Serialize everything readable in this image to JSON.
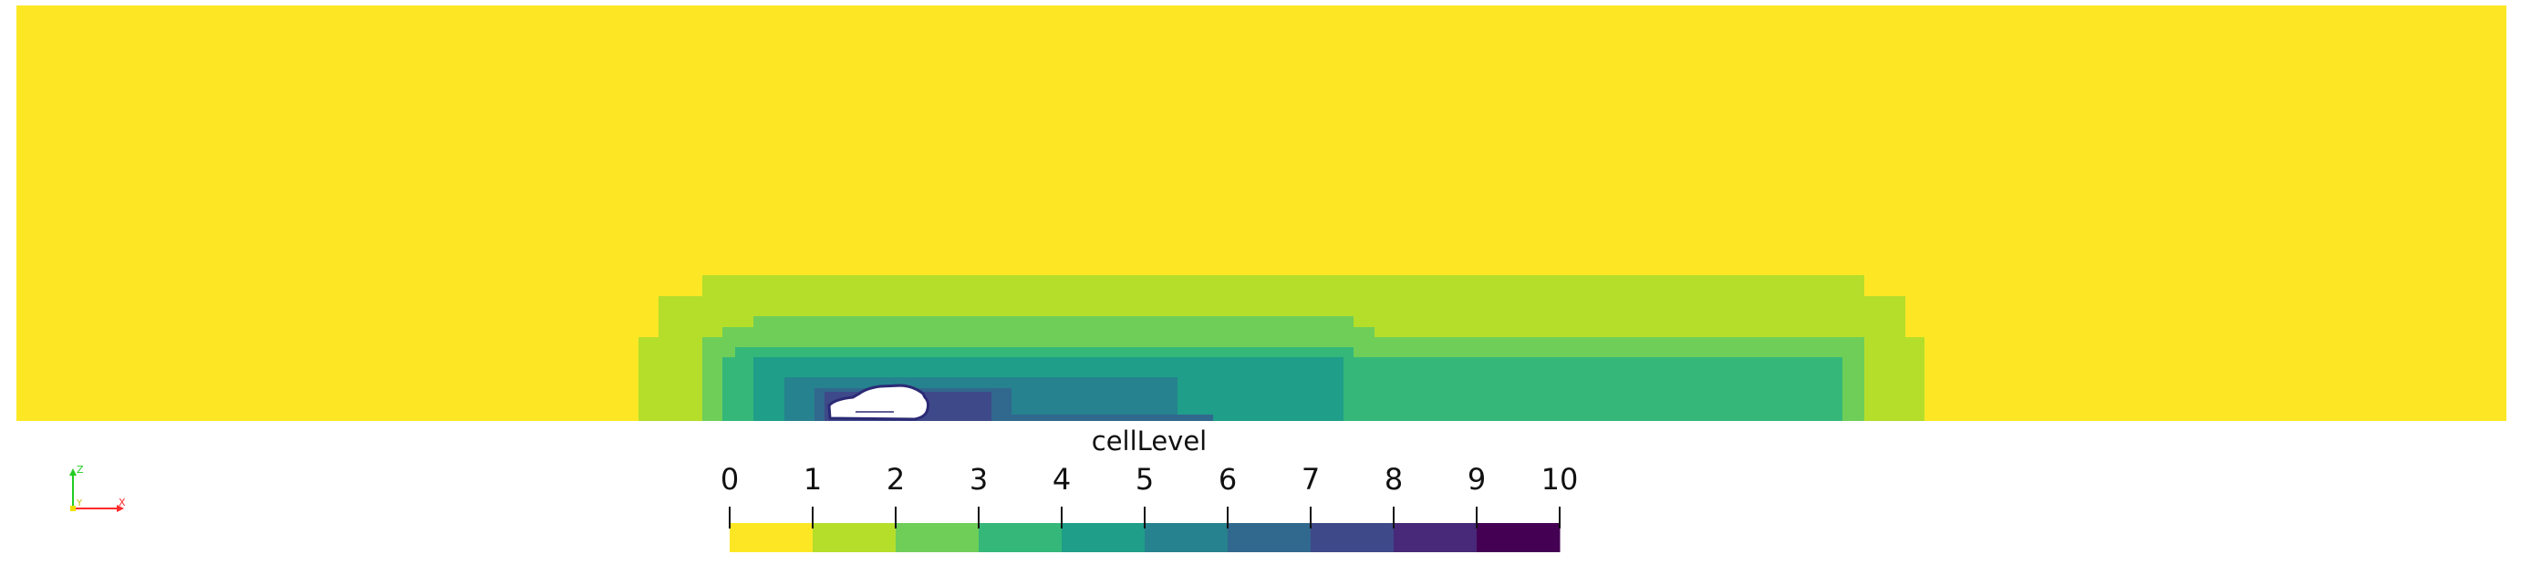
{
  "colorbar": {
    "title": "cellLevel",
    "ticks": [
      "0",
      "1",
      "2",
      "3",
      "4",
      "5",
      "6",
      "7",
      "8",
      "9",
      "10"
    ],
    "colors": [
      "#fde725",
      "#b5de2b",
      "#6ece58",
      "#35b779",
      "#1f9e89",
      "#26828e",
      "#31688e",
      "#3e4989",
      "#482878",
      "#440154"
    ]
  },
  "axes_triad": {
    "x_label": "X",
    "y_label": "Y",
    "z_label": "Z",
    "x_color": "#ff2a2a",
    "y_color": "#f0e000",
    "z_color": "#22cc22"
  },
  "field_colors": {
    "level0": "#fde725",
    "level1": "#b5de2b",
    "level2": "#6ece58",
    "level3": "#35b779",
    "level4": "#1f9e89",
    "level5": "#26828e",
    "level6": "#31688e",
    "level7": "#3e4989",
    "body": "#ffffff",
    "body_outline": "#2b2a75"
  }
}
